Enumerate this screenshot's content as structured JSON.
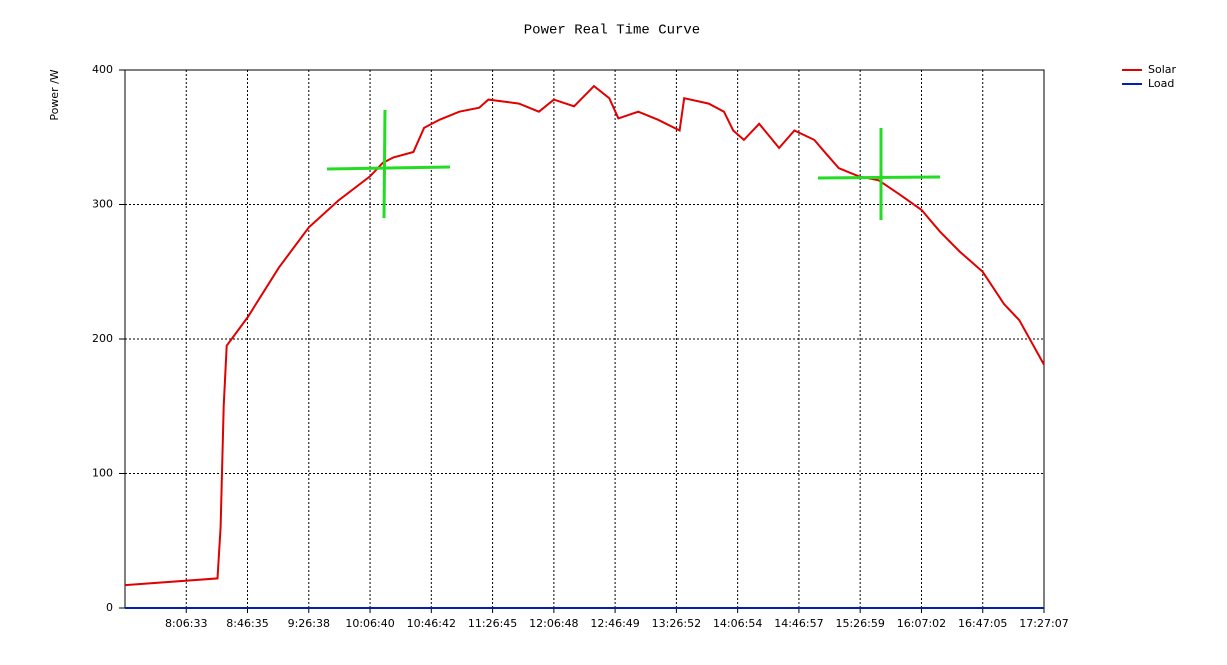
{
  "chart_data": {
    "type": "line",
    "title": "Power Real Time Curve",
    "y_label": "Power /W",
    "xlim": [
      "7:26:31",
      "17:27:07"
    ],
    "xticks": [
      "8:06:33",
      "8:46:35",
      "9:26:38",
      "10:06:40",
      "10:46:42",
      "11:26:45",
      "12:06:48",
      "12:46:49",
      "13:26:52",
      "14:06:54",
      "14:46:57",
      "15:26:59",
      "16:07:02",
      "16:47:05",
      "17:27:07"
    ],
    "ylim": [
      0,
      400
    ],
    "yticks": [
      0,
      100,
      200,
      300,
      400
    ],
    "grid": true,
    "legend": "top-right",
    "series": [
      {
        "name": "Solar",
        "color": "#e00000",
        "x": [
          "7:26:31",
          "8:27:00",
          "8:29:00",
          "8:31:00",
          "8:33:00",
          "8:46:35",
          "9:07:00",
          "9:26:38",
          "9:46:00",
          "10:06:40",
          "10:15:00",
          "10:22:00",
          "10:35:00",
          "10:42:00",
          "10:52:00",
          "11:05:00",
          "11:18:00",
          "11:24:00",
          "11:44:00",
          "11:57:00",
          "12:06:48",
          "12:20:00",
          "12:33:00",
          "12:43:00",
          "12:49:00",
          "13:02:00",
          "13:15:00",
          "13:29:00",
          "13:32:00",
          "13:48:00",
          "13:58:00",
          "14:04:00",
          "14:11:00",
          "14:21:00",
          "14:34:00",
          "14:44:00",
          "14:57:00",
          "15:03:00",
          "15:13:00",
          "15:26:00",
          "15:39:00",
          "15:52:00",
          "16:07:02",
          "16:19:00",
          "16:32:00",
          "16:47:05",
          "17:01:00",
          "17:11:00",
          "17:27:07"
        ],
        "values": [
          17,
          22,
          60,
          150,
          195,
          216,
          253,
          283,
          303,
          321,
          331,
          335,
          339,
          357,
          363,
          369,
          372,
          378,
          375,
          369,
          378,
          373,
          388,
          379,
          364,
          369,
          363,
          355,
          379,
          375,
          369,
          355,
          348,
          360,
          342,
          355,
          348,
          340,
          327,
          321,
          318,
          308,
          296,
          280,
          265,
          250,
          226,
          214,
          181
        ]
      },
      {
        "name": "Load",
        "color": "#0020b0",
        "x": [
          "7:26:31",
          "17:27:07"
        ],
        "values": [
          0,
          0
        ]
      }
    ]
  }
}
